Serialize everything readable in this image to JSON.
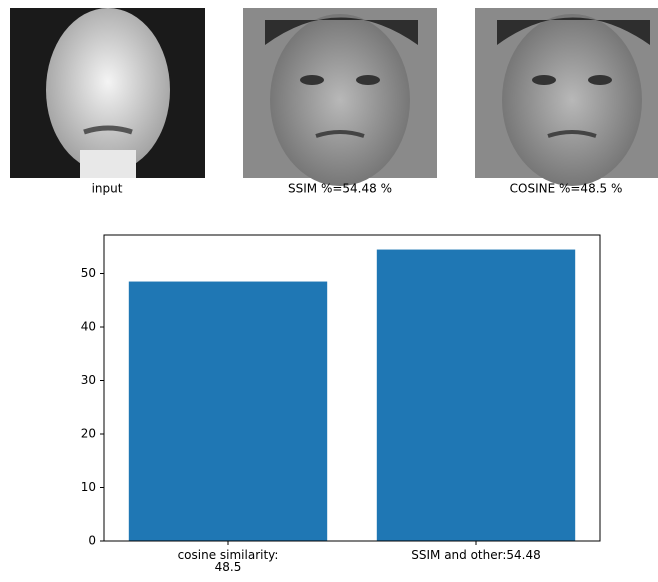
{
  "images": [
    {
      "caption": "input"
    },
    {
      "caption": "SSIM %=54.48 %"
    },
    {
      "caption": "COSINE %=48.5 %"
    }
  ],
  "chart_data": {
    "type": "bar",
    "categories": [
      "cosine similarity:\n48.5",
      "SSIM and other:54.48"
    ],
    "values": [
      48.5,
      54.48
    ],
    "color": "#1f77b4",
    "ylim": [
      0,
      57.2
    ],
    "yticks": [
      0,
      10,
      20,
      30,
      40,
      50
    ]
  }
}
